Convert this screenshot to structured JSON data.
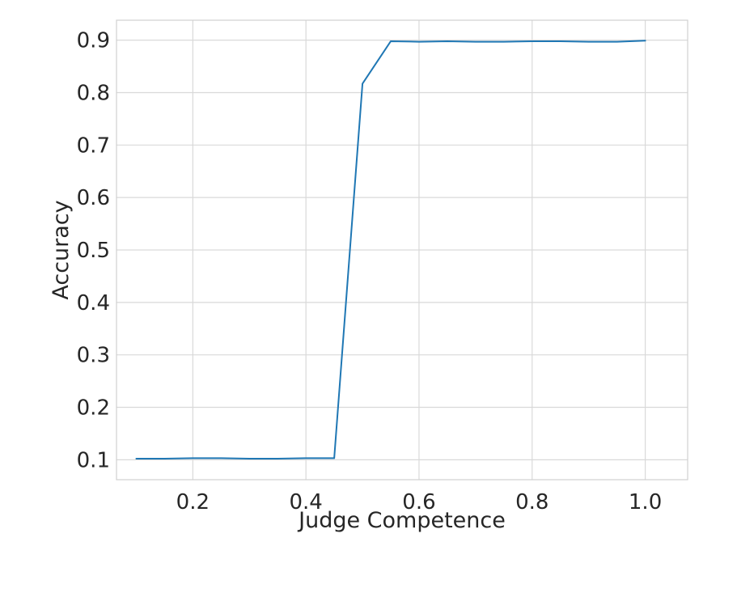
{
  "chart_data": {
    "type": "line",
    "title": "",
    "xlabel": "Judge Competence",
    "ylabel": "Accuracy",
    "xlim": [
      0.065,
      1.075
    ],
    "ylim": [
      0.062,
      0.938
    ],
    "xticks": [
      0.2,
      0.4,
      0.6,
      0.8,
      1.0
    ],
    "xtick_labels": [
      "0.2",
      "0.4",
      "0.6",
      "0.8",
      "1.0"
    ],
    "yticks": [
      0.1,
      0.2,
      0.3,
      0.4,
      0.5,
      0.6,
      0.7,
      0.8,
      0.9
    ],
    "ytick_labels": [
      "0.1",
      "0.2",
      "0.3",
      "0.4",
      "0.5",
      "0.6",
      "0.7",
      "0.8",
      "0.9"
    ],
    "grid": true,
    "legend": "none",
    "series": [
      {
        "color": "#1f77b4",
        "x": [
          0.1,
          0.15,
          0.2,
          0.25,
          0.3,
          0.35,
          0.4,
          0.45,
          0.5,
          0.55,
          0.6,
          0.65,
          0.7,
          0.75,
          0.8,
          0.85,
          0.9,
          0.95,
          1.0
        ],
        "y": [
          0.102,
          0.102,
          0.103,
          0.103,
          0.102,
          0.102,
          0.103,
          0.103,
          0.817,
          0.898,
          0.897,
          0.898,
          0.897,
          0.897,
          0.898,
          0.898,
          0.897,
          0.897,
          0.899
        ]
      }
    ]
  }
}
